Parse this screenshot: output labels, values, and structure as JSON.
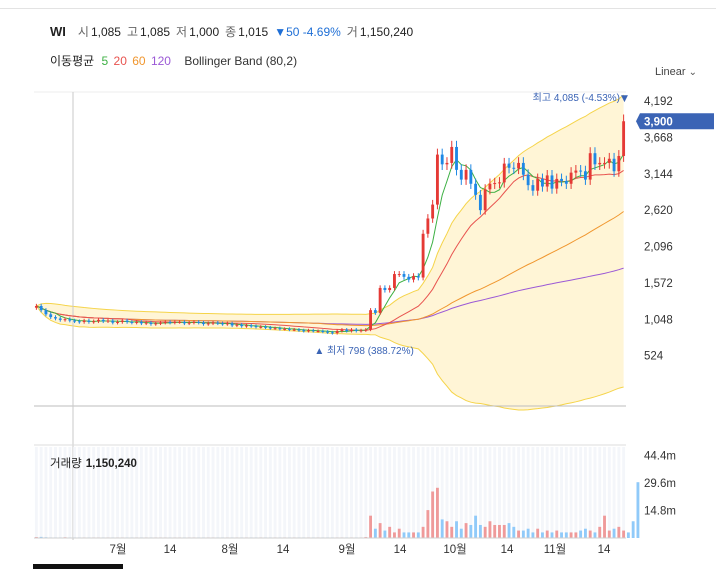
{
  "header": {
    "symbol": "WI",
    "open_label": "시",
    "open": "1,085",
    "high_label": "고",
    "high": "1,085",
    "low_label": "저",
    "low": "1,000",
    "close_label": "종",
    "close": "1,015",
    "change": "▼50 -4.69%",
    "volume_label": "거",
    "volume": "1,150,240"
  },
  "indicators": {
    "ma_label": "이동평균",
    "ma_periods": [
      "5",
      "20",
      "60",
      "120"
    ],
    "ma_colors": [
      "#3cb043",
      "#e8534f",
      "#f0962e",
      "#9b59d6"
    ],
    "bollinger": "Bollinger Band (80,2)"
  },
  "scale_mode": "Linear",
  "colors": {
    "up": "#e53935",
    "down": "#1e88e5",
    "band_fill": "#fff5d6",
    "band_line": "#f5d44a",
    "last_price_bg": "#3b64b5"
  },
  "chart_data": {
    "type": "candlestick",
    "y_ticks": [
      "4,192",
      "3,668",
      "3,144",
      "2,620",
      "2,096",
      "1,572",
      "1,048",
      "524"
    ],
    "ylim": [
      -200,
      4350
    ],
    "x_ticks": [
      "7월",
      "14",
      "8월",
      "14",
      "9월",
      "14",
      "10월",
      "14",
      "11월",
      "14"
    ],
    "last_price": "3,900",
    "max_annotation": "최고 4,085 (-4.53%)",
    "min_annotation": "최저 798 (388.72%)",
    "volume_label": "거래량",
    "volume_value": "1,150,240",
    "volume_ticks": [
      "44.4m",
      "29.6m",
      "14.8m"
    ],
    "volume_max": 50,
    "closes": [
      1240,
      1180,
      1120,
      1080,
      1060,
      1040,
      1050,
      1030,
      1020,
      1010,
      1030,
      1010,
      1020,
      1040,
      1020,
      1030,
      1000,
      1010,
      1030,
      1010,
      1000,
      1010,
      990,
      1000,
      980,
      990,
      1000,
      1010,
      1000,
      1010,
      1010,
      990,
      1000,
      1010,
      1000,
      980,
      990,
      1000,
      990,
      980,
      990,
      960,
      970,
      950,
      960,
      950,
      940,
      940,
      930,
      920,
      920,
      910,
      910,
      900,
      900,
      890,
      880,
      890,
      880,
      880,
      870,
      860,
      850,
      880,
      900,
      880,
      900,
      880,
      890,
      900,
      1180,
      1140,
      1500,
      1470,
      1500,
      1700,
      1700,
      1660,
      1620,
      1670,
      1650,
      2280,
      2500,
      2700,
      3420,
      3280,
      3300,
      3530,
      3200,
      3060,
      3200,
      3000,
      2840,
      2620,
      2920,
      3000,
      3010,
      3020,
      3290,
      3230,
      3220,
      3300,
      3130,
      2980,
      2900,
      3070,
      2960,
      3120,
      2930,
      3070,
      3040,
      3000,
      3160,
      3190,
      3180,
      3060,
      3440,
      3280,
      3300,
      3300,
      3360,
      3180,
      3400,
      3900
    ],
    "volumes": [
      0.5,
      0.6,
      0.4,
      0.3,
      0.3,
      0.3,
      0.4,
      0.3,
      0.3,
      0.3,
      0.3,
      0.3,
      0.3,
      0.3,
      0.3,
      0.3,
      0.3,
      0.3,
      0.3,
      0.3,
      0.3,
      0.3,
      0.3,
      0.3,
      0.3,
      0.3,
      0.3,
      0.3,
      0.3,
      0.3,
      0.3,
      0.3,
      0.3,
      0.3,
      0.3,
      0.3,
      0.3,
      0.3,
      0.3,
      0.3,
      0.3,
      0.3,
      0.3,
      0.3,
      0.3,
      0.3,
      0.3,
      0.3,
      0.3,
      0.3,
      0.3,
      0.3,
      0.3,
      0.3,
      0.3,
      0.3,
      0.3,
      0.3,
      0.3,
      0.3,
      0.3,
      0.3,
      0.3,
      0.3,
      0.3,
      0.3,
      0.3,
      0.3,
      0.3,
      0.5,
      12,
      5,
      8,
      4,
      6,
      3,
      5,
      3,
      3,
      3,
      3,
      6,
      15,
      25,
      27,
      10,
      9,
      6,
      9,
      5,
      8,
      7,
      12,
      7,
      6,
      9,
      7,
      7,
      7,
      8,
      6,
      4,
      4,
      5,
      3,
      5,
      3,
      4,
      3,
      4,
      3,
      3,
      3,
      3,
      4,
      5,
      4,
      3,
      6,
      12,
      4,
      5,
      6,
      4,
      3,
      9,
      30
    ]
  }
}
